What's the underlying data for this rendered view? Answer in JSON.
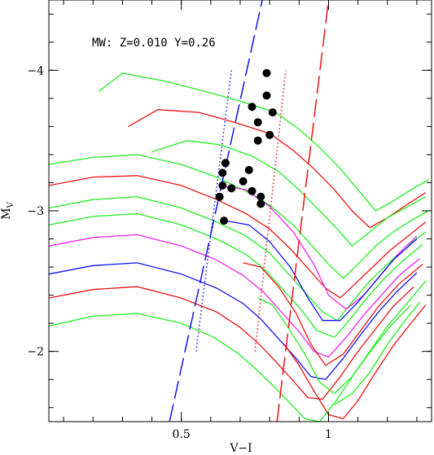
{
  "chart_data": {
    "type": "line",
    "annotation": "MW:  Z=0.010 Y=0.26",
    "xlabel": "V−I",
    "ylabel_main": "M",
    "ylabel_sub": "V",
    "xlim": [
      0.05,
      1.35
    ],
    "ylim": [
      -1.5,
      -4.5
    ],
    "x_ticks": [
      0.5,
      1.0
    ],
    "x_tick_labels": [
      "0.5",
      "1"
    ],
    "y_ticks": [
      -2,
      -3,
      -4
    ],
    "y_tick_labels": [
      "−2",
      "−3",
      "−4"
    ],
    "grid": false,
    "colors": {
      "green": "#22ee22",
      "red": "#ee1111",
      "magenta": "#ee22ee",
      "blue": "#1111ee",
      "black": "#000000"
    },
    "series": [
      {
        "color": "green",
        "style": "solid",
        "x": [
          0.22,
          0.3,
          0.45,
          0.58,
          0.7,
          0.82,
          0.9,
          0.97,
          1.04,
          1.1,
          1.16,
          1.22,
          1.28,
          1.34
        ],
        "y": [
          -3.85,
          -3.98,
          -3.92,
          -3.85,
          -3.78,
          -3.7,
          -3.58,
          -3.45,
          -3.3,
          -3.15,
          -3.0,
          -3.07,
          -3.15,
          -3.22
        ]
      },
      {
        "color": "red",
        "style": "solid",
        "x": [
          0.32,
          0.42,
          0.56,
          0.68,
          0.8,
          0.88,
          0.95,
          1.02,
          1.08,
          1.14,
          1.2,
          1.27,
          1.33
        ],
        "y": [
          -3.6,
          -3.72,
          -3.7,
          -3.63,
          -3.55,
          -3.43,
          -3.3,
          -3.15,
          -3.0,
          -2.88,
          -2.95,
          -3.05,
          -3.13
        ]
      },
      {
        "color": "green",
        "style": "solid",
        "x": [
          0.4,
          0.52,
          0.63,
          0.74,
          0.83,
          0.9,
          0.97,
          1.03,
          1.08,
          1.14,
          1.2,
          1.26,
          1.33
        ],
        "y": [
          -3.42,
          -3.5,
          -3.47,
          -3.39,
          -3.28,
          -3.15,
          -3.0,
          -2.87,
          -2.75,
          -2.85,
          -2.95,
          -3.02,
          -3.1
        ]
      },
      {
        "color": "green",
        "style": "solid",
        "x": [
          0.05,
          0.2,
          0.35,
          0.5,
          0.62,
          0.72,
          0.8,
          0.88,
          0.94,
          1.0,
          1.05,
          1.1,
          1.16,
          1.22,
          1.28,
          1.34
        ],
        "y": [
          -3.33,
          -3.38,
          -3.4,
          -3.33,
          -3.24,
          -3.14,
          -3.04,
          -2.9,
          -2.76,
          -2.62,
          -2.52,
          -2.62,
          -2.75,
          -2.85,
          -2.93,
          -3.0
        ]
      },
      {
        "color": "red",
        "style": "solid",
        "x": [
          0.05,
          0.2,
          0.35,
          0.5,
          0.62,
          0.72,
          0.8,
          0.87,
          0.93,
          0.99,
          1.04,
          1.09,
          1.15,
          1.21,
          1.27,
          1.33
        ],
        "y": [
          -3.18,
          -3.24,
          -3.25,
          -3.18,
          -3.08,
          -2.98,
          -2.87,
          -2.73,
          -2.59,
          -2.45,
          -2.38,
          -2.48,
          -2.6,
          -2.72,
          -2.82,
          -2.92
        ]
      },
      {
        "color": "green",
        "style": "solid",
        "x": [
          0.05,
          0.2,
          0.35,
          0.5,
          0.62,
          0.72,
          0.8,
          0.86,
          0.92,
          0.98,
          1.03,
          1.08,
          1.14,
          1.2,
          1.26,
          1.33
        ],
        "y": [
          -3.02,
          -3.08,
          -3.1,
          -3.02,
          -2.92,
          -2.82,
          -2.7,
          -2.56,
          -2.42,
          -2.28,
          -2.22,
          -2.35,
          -2.5,
          -2.62,
          -2.74,
          -2.85
        ]
      },
      {
        "color": "green",
        "style": "solid",
        "x": [
          0.05,
          0.2,
          0.35,
          0.5,
          0.62,
          0.72,
          0.79,
          0.85,
          0.91,
          0.96,
          1.02,
          1.07,
          1.13,
          1.19,
          1.25,
          1.32
        ],
        "y": [
          -2.9,
          -2.96,
          -2.98,
          -2.9,
          -2.8,
          -2.69,
          -2.57,
          -2.43,
          -2.29,
          -2.15,
          -2.1,
          -2.22,
          -2.38,
          -2.52,
          -2.64,
          -2.76
        ]
      },
      {
        "color": "magenta",
        "style": "solid",
        "x": [
          0.05,
          0.2,
          0.35,
          0.5,
          0.62,
          0.71,
          0.78,
          0.84,
          0.9,
          0.95,
          1.0,
          1.06,
          1.12,
          1.18,
          1.24,
          1.31
        ],
        "y": [
          -2.75,
          -2.81,
          -2.83,
          -2.75,
          -2.65,
          -2.54,
          -2.42,
          -2.28,
          -2.14,
          -2.0,
          -1.96,
          -2.1,
          -2.26,
          -2.4,
          -2.54,
          -2.66
        ]
      },
      {
        "color": "blue",
        "style": "solid",
        "x": [
          0.05,
          0.2,
          0.35,
          0.5,
          0.62,
          0.71,
          0.77,
          0.83,
          0.89,
          0.94,
          0.99,
          1.05,
          1.11,
          1.17,
          1.23,
          1.3
        ],
        "y": [
          -2.55,
          -2.61,
          -2.63,
          -2.55,
          -2.45,
          -2.34,
          -2.23,
          -2.09,
          -1.95,
          -1.82,
          -1.8,
          -1.95,
          -2.12,
          -2.28,
          -2.42,
          -2.56
        ]
      },
      {
        "color": "red",
        "style": "solid",
        "x": [
          0.05,
          0.2,
          0.35,
          0.5,
          0.62,
          0.7,
          0.76,
          0.82,
          0.88,
          0.93,
          0.98,
          1.04,
          1.1,
          1.16,
          1.22,
          1.29
        ],
        "y": [
          -2.38,
          -2.44,
          -2.46,
          -2.38,
          -2.28,
          -2.17,
          -2.06,
          -1.93,
          -1.79,
          -1.67,
          -1.66,
          -1.82,
          -2.0,
          -2.16,
          -2.32,
          -2.46
        ]
      },
      {
        "color": "green",
        "style": "solid",
        "x": [
          0.05,
          0.2,
          0.35,
          0.5,
          0.61,
          0.69,
          0.75,
          0.81,
          0.87,
          0.92,
          0.97,
          1.03,
          1.09,
          1.15,
          1.21,
          1.28
        ],
        "y": [
          -2.18,
          -2.25,
          -2.27,
          -2.2,
          -2.1,
          -1.99,
          -1.88,
          -1.76,
          -1.63,
          -1.52,
          -1.5,
          -1.66,
          -1.85,
          -2.02,
          -2.18,
          -2.33
        ]
      },
      {
        "color": "magenta",
        "style": "solid",
        "x": [
          0.63,
          0.72,
          0.8,
          0.88,
          0.95,
          1.0,
          1.06,
          1.12,
          1.18,
          1.24,
          1.3
        ],
        "y": [
          -3.18,
          -3.15,
          -3.03,
          -2.85,
          -2.62,
          -2.4,
          -2.3,
          -2.4,
          -2.55,
          -2.7,
          -2.82
        ]
      },
      {
        "color": "blue",
        "style": "solid",
        "x": [
          0.65,
          0.73,
          0.8,
          0.87,
          0.93,
          0.98,
          1.04,
          1.1,
          1.16,
          1.22,
          1.3
        ],
        "y": [
          -2.93,
          -2.9,
          -2.78,
          -2.6,
          -2.38,
          -2.22,
          -2.22,
          -2.35,
          -2.5,
          -2.65,
          -2.8
        ]
      },
      {
        "color": "red",
        "style": "solid",
        "x": [
          0.71,
          0.77,
          0.83,
          0.89,
          0.94,
          0.99,
          1.05,
          1.11,
          1.17,
          1.24,
          1.32
        ],
        "y": [
          -2.63,
          -2.6,
          -2.46,
          -2.27,
          -2.05,
          -1.9,
          -1.98,
          -2.15,
          -2.32,
          -2.48,
          -2.62
        ]
      },
      {
        "color": "green",
        "style": "solid",
        "x": [
          0.76,
          0.81,
          0.86,
          0.92,
          0.97,
          1.02,
          1.08,
          1.14,
          1.2,
          1.27,
          1.33
        ],
        "y": [
          -2.38,
          -2.33,
          -2.18,
          -1.98,
          -1.78,
          -1.7,
          -1.82,
          -2.0,
          -2.18,
          -2.35,
          -2.5
        ]
      },
      {
        "color": "red",
        "style": "solid",
        "x": [
          0.85,
          0.9,
          0.95,
          1.0,
          1.05,
          1.1,
          1.16,
          1.22,
          1.28,
          1.33
        ],
        "y": [
          -2.05,
          -1.9,
          -1.72,
          -1.55,
          -1.52,
          -1.65,
          -1.85,
          -2.04,
          -2.2,
          -2.33
        ]
      },
      {
        "color": "green",
        "style": "solid",
        "x": [
          1.02,
          1.08,
          1.14,
          1.2,
          1.26,
          1.31
        ],
        "y": [
          -1.62,
          -1.7,
          -1.85,
          -2.05,
          -2.22,
          -2.35
        ]
      },
      {
        "color": "blue",
        "style": "longdash",
        "x": [
          0.46,
          0.775
        ],
        "y": [
          -1.5,
          -4.5
        ]
      },
      {
        "color": "red",
        "style": "longdash",
        "x": [
          0.825,
          1.0
        ],
        "y": [
          -1.5,
          -4.5
        ]
      },
      {
        "color": "blue",
        "style": "dotted",
        "x": [
          0.55,
          0.67
        ],
        "y": [
          -2.0,
          -4.0
        ]
      },
      {
        "color": "red",
        "style": "dotted",
        "x": [
          0.75,
          0.855
        ],
        "y": [
          -2.0,
          -4.0
        ]
      }
    ],
    "points": {
      "color": "black",
      "x": [
        0.79,
        0.79,
        0.81,
        0.74,
        0.76,
        0.8,
        0.76,
        0.65,
        0.64,
        0.73,
        0.71,
        0.64,
        0.67,
        0.74,
        0.77,
        0.63,
        0.77,
        0.645
      ],
      "y": [
        -3.98,
        -3.82,
        -3.7,
        -3.74,
        -3.63,
        -3.54,
        -3.5,
        -3.34,
        -3.27,
        -3.29,
        -3.21,
        -3.18,
        -3.16,
        -3.14,
        -3.1,
        -3.1,
        -3.05,
        -2.93
      ]
    }
  }
}
